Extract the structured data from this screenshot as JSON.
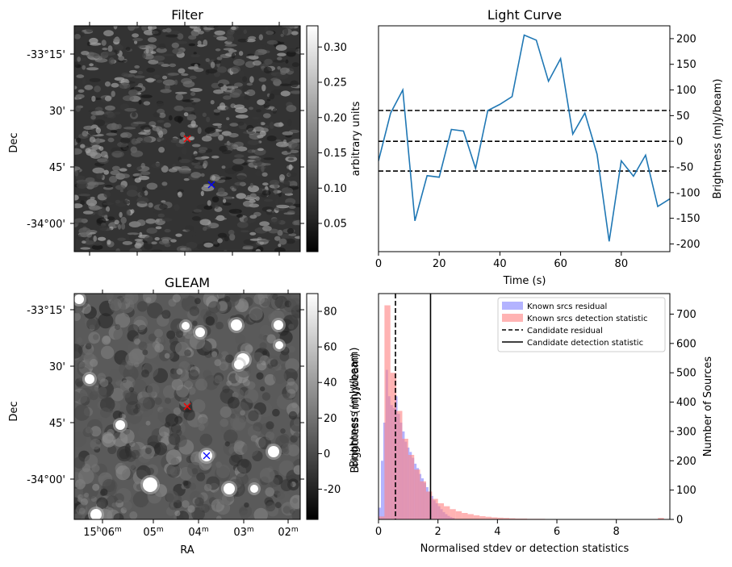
{
  "colors": {
    "line": "#1f77b4",
    "known_residual": "#8080ff",
    "known_detection": "#ff8080",
    "marker_red": "#ff0000",
    "marker_blue": "#0000ff"
  },
  "chart_data": [
    {
      "type": "heatmap",
      "title": "Filter",
      "ylabel": "Dec",
      "yticks": [
        "-33°15'",
        "30'",
        "45'",
        "-34°00'"
      ],
      "colorbar": {
        "label": "arbitrary units",
        "ticks": [
          "0.05",
          "0.10",
          "0.15",
          "0.20",
          "0.25",
          "0.30"
        ],
        "range": [
          0.01,
          0.33
        ]
      },
      "markers": [
        {
          "symbol": "x",
          "color": "red"
        },
        {
          "symbol": "x",
          "color": "blue"
        }
      ]
    },
    {
      "type": "line",
      "title": "Light Curve",
      "xlabel": "Time (s)",
      "ylabel": "Brightness (mJy/beam)",
      "xlim": [
        0,
        96
      ],
      "ylim": [
        -215,
        225
      ],
      "xticks": [
        "0",
        "20",
        "40",
        "60",
        "80"
      ],
      "yticks": [
        "-200",
        "-150",
        "-100",
        "-50",
        "0",
        "50",
        "100",
        "150",
        "200"
      ],
      "x": [
        0,
        4,
        8,
        12,
        16,
        20,
        24,
        28,
        32,
        36,
        40,
        44,
        48,
        52,
        56,
        60,
        64,
        68,
        72,
        76,
        80,
        84,
        88,
        92,
        96
      ],
      "values": [
        -38,
        55,
        100,
        -155,
        -67,
        -70,
        23,
        20,
        -53,
        60,
        72,
        87,
        207,
        197,
        117,
        161,
        14,
        55,
        -25,
        -195,
        -38,
        -68,
        -27,
        -127,
        -112
      ],
      "hlines": [
        60,
        0,
        -58
      ]
    },
    {
      "type": "heatmap",
      "title": "GLEAM",
      "xlabel": "RA",
      "ylabel": "Dec",
      "xticks": [
        "15h06m",
        "05m",
        "04m",
        "03m",
        "02m"
      ],
      "yticks": [
        "-33°15'",
        "30'",
        "45'",
        "-34°00'"
      ],
      "colorbar": {
        "label": "Brightness (mJy/beam)",
        "ticks": [
          "-20",
          "0",
          "20",
          "40",
          "60",
          "80"
        ],
        "range": [
          -37,
          90
        ]
      },
      "markers": [
        {
          "symbol": "x",
          "color": "red"
        },
        {
          "symbol": "x",
          "color": "blue"
        }
      ]
    },
    {
      "type": "bar",
      "xlabel": "Normalised stdev or detection statistics",
      "ylabel": "Number of Sources",
      "xlim": [
        0,
        9.8
      ],
      "ylim": [
        0,
        770
      ],
      "xticks": [
        "0",
        "2",
        "4",
        "6",
        "8"
      ],
      "yticks": [
        "0",
        "100",
        "200",
        "300",
        "400",
        "500",
        "600",
        "700"
      ],
      "series": [
        {
          "name": "Known srcs residual",
          "bin_width": 0.08,
          "bin_start": 0.0,
          "values": [
            40,
            200,
            330,
            510,
            420,
            390,
            380,
            420,
            360,
            330,
            300,
            265,
            245,
            230,
            210,
            190,
            175,
            155,
            140,
            125,
            110,
            95,
            80,
            65,
            55,
            45,
            35,
            25,
            18,
            12,
            8,
            5
          ]
        },
        {
          "name": "Known srcs detection statistic",
          "bin_width": 0.2,
          "bin_start": 0.0,
          "values": [
            10,
            730,
            500,
            370,
            275,
            220,
            170,
            130,
            95,
            70,
            55,
            45,
            35,
            28,
            22,
            18,
            14,
            11,
            9,
            7,
            6,
            5,
            4,
            3,
            3,
            2,
            2,
            2,
            1,
            1,
            1,
            1,
            1,
            1,
            1,
            1,
            1,
            1,
            1,
            1,
            1,
            1,
            1,
            1,
            1,
            1,
            1,
            5
          ]
        }
      ],
      "vlines": [
        {
          "name": "Candidate residual",
          "value": 0.57,
          "style": "dashed"
        },
        {
          "name": "Candidate detection statistic",
          "value": 1.75,
          "style": "solid"
        }
      ],
      "legend": "top-right",
      "twin_ylabel": "Brightness (mJy/beam)"
    }
  ]
}
